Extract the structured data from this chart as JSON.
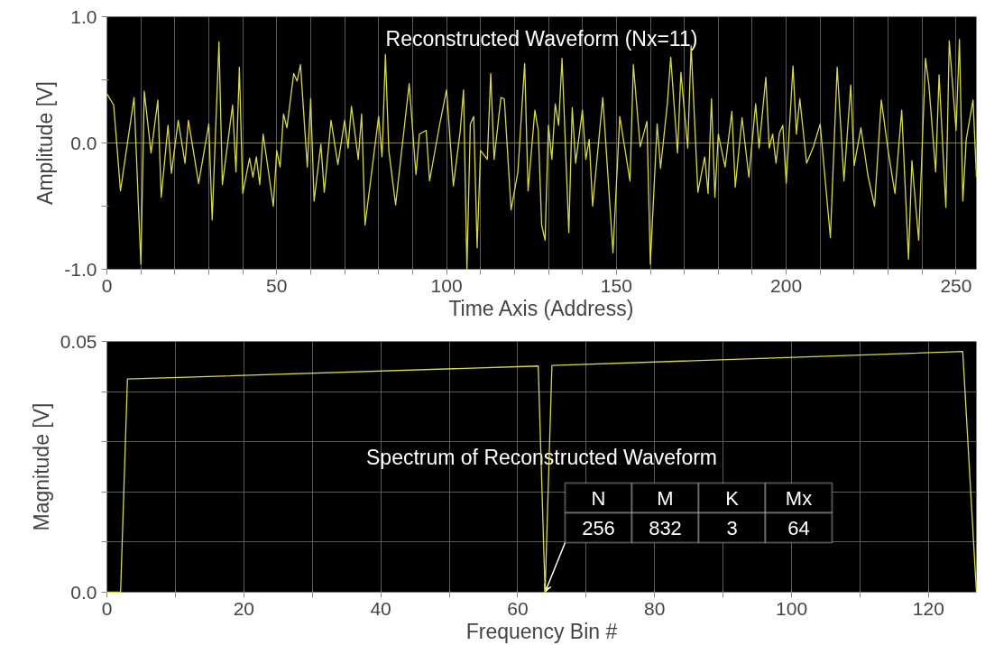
{
  "chart_data": [
    {
      "type": "line",
      "title": "Reconstructed Waveform (Nx=11)",
      "xlabel": "Time Axis (Address)",
      "ylabel": "Amplitude [V]",
      "x": [
        0,
        2,
        4,
        8,
        10,
        11,
        13,
        15,
        16,
        18,
        19,
        21,
        23,
        24,
        27,
        30,
        31,
        33,
        34,
        37,
        38,
        39,
        40,
        42,
        43,
        44,
        45,
        46,
        49,
        50,
        51,
        52,
        53,
        55,
        56,
        57,
        59,
        60,
        61,
        63,
        64,
        66,
        68,
        70,
        71,
        72,
        74,
        75,
        76,
        80,
        81,
        82,
        83,
        85,
        89,
        91,
        92,
        94,
        95,
        98,
        100,
        102,
        104,
        105,
        106,
        107,
        108,
        109,
        110,
        112,
        113,
        114,
        116,
        117,
        119,
        121,
        123,
        124,
        126,
        127,
        128,
        129,
        130,
        131,
        132,
        133,
        134,
        136,
        137,
        138,
        140,
        141,
        142,
        143,
        146,
        149,
        151,
        154,
        155,
        157,
        159,
        160,
        162,
        163,
        165,
        166,
        168,
        169,
        171,
        172,
        174,
        176,
        177,
        178,
        179,
        180,
        182,
        184,
        185,
        187,
        189,
        191,
        192,
        194,
        195,
        196,
        197,
        198,
        199,
        200,
        202,
        203,
        204,
        206,
        208,
        210,
        213,
        215,
        217,
        219,
        220,
        222,
        224,
        226,
        228,
        230,
        232,
        234,
        236,
        237,
        239,
        241,
        242,
        244,
        245,
        247,
        248,
        250,
        251,
        252,
        253,
        255,
        256
      ],
      "series": [
        {
          "color": "#d8d848",
          "values": [
            0.39,
            0.3,
            -0.38,
            0.36,
            -0.96,
            0.41,
            -0.08,
            0.34,
            -0.43,
            0.14,
            -0.24,
            0.18,
            -0.16,
            0.18,
            -0.32,
            0.15,
            -0.61,
            0.8,
            -0.33,
            0.3,
            -0.23,
            0.6,
            -0.4,
            -0.12,
            -0.27,
            -0.11,
            -0.33,
            0.07,
            -0.5,
            -0.06,
            -0.19,
            0.23,
            0.12,
            0.55,
            0.49,
            0.62,
            -0.19,
            0.35,
            -0.46,
            -0.01,
            -0.39,
            0.18,
            -0.17,
            0.18,
            -0.04,
            0.29,
            -0.13,
            0.23,
            -0.65,
            0.21,
            -0.11,
            0.7,
            -0.06,
            -0.49,
            0.47,
            -0.25,
            0.07,
            0.1,
            -0.3,
            0.15,
            0.42,
            -0.34,
            0.09,
            0.42,
            -1.0,
            0.15,
            0.21,
            -0.83,
            -0.06,
            -0.13,
            0.55,
            -0.13,
            0.36,
            0.35,
            -0.53,
            -0.23,
            0.63,
            -0.38,
            0.26,
            0.1,
            -0.65,
            -0.77,
            0.14,
            -0.13,
            0.31,
            0.14,
            0.67,
            -0.71,
            0.28,
            -0.16,
            0.26,
            -0.13,
            0.03,
            -0.5,
            0.36,
            -0.87,
            0.21,
            -0.3,
            0.62,
            -0.03,
            0.17,
            -0.96,
            0.15,
            -0.2,
            0.31,
            0.68,
            -0.08,
            0.56,
            -0.04,
            0.77,
            -0.39,
            -0.11,
            -0.4,
            0.35,
            -0.43,
            0.07,
            -0.19,
            0.25,
            -0.35,
            0.2,
            -0.27,
            0.31,
            -0.04,
            0.52,
            -0.04,
            0.07,
            -0.16,
            0.08,
            0.14,
            -0.32,
            0.61,
            0.07,
            0.35,
            -0.16,
            -0.03,
            0.15,
            -0.75,
            0.6,
            -0.3,
            0.46,
            -0.18,
            0.12,
            -0.25,
            -0.5,
            0.34,
            -0.06,
            -0.4,
            0.26,
            -0.92,
            -0.14,
            -0.77,
            0.67,
            0.46,
            -0.23,
            0.54,
            -0.51,
            0.81,
            0.1,
            0.82,
            -0.46,
            0.03,
            0.34,
            -0.27
          ]
        }
      ],
      "xlim": [
        0,
        256
      ],
      "ylim": [
        -1.0,
        1.0
      ],
      "xticks": [
        0,
        {
          "value": 10,
          "label": null
        },
        {
          "value": 20,
          "label": null
        },
        {
          "value": 30,
          "label": null
        },
        {
          "value": 40,
          "label": null
        },
        50,
        {
          "value": 60,
          "label": null
        },
        {
          "value": 70,
          "label": null
        },
        {
          "value": 80,
          "label": null
        },
        {
          "value": 90,
          "label": null
        },
        100,
        {
          "value": 110,
          "label": null
        },
        {
          "value": 120,
          "label": null
        },
        {
          "value": 130,
          "label": null
        },
        {
          "value": 140,
          "label": null
        },
        150,
        {
          "value": 160,
          "label": null
        },
        {
          "value": 170,
          "label": null
        },
        {
          "value": 180,
          "label": null
        },
        {
          "value": 190,
          "label": null
        },
        200,
        {
          "value": 210,
          "label": null
        },
        {
          "value": 220,
          "label": null
        },
        {
          "value": 230,
          "label": null
        },
        {
          "value": 240,
          "label": null
        },
        250
      ],
      "yticks": [
        {
          "value": -1.0,
          "label": "-1.0"
        },
        {
          "value": -0.5,
          "label": null
        },
        {
          "value": 0,
          "label": "0.0"
        },
        {
          "value": 0.5,
          "label": null
        },
        {
          "value": 1.0,
          "label": "1.0"
        }
      ],
      "grid": "x",
      "ref_lines": [
        {
          "axis": "y",
          "value": 0,
          "color": "#808060"
        }
      ],
      "line_style": "solid"
    },
    {
      "type": "line",
      "title": "Spectrum of Reconstructed Waveform",
      "xlabel": "Frequency Bin #",
      "ylabel": "Magnitude [V]",
      "x": [
        0,
        2,
        3,
        63,
        64,
        65,
        125,
        127
      ],
      "series": [
        {
          "color": "#d8d848",
          "values": [
            0,
            0,
            0.0425,
            0.0451,
            0,
            0.0452,
            0.048,
            0
          ]
        }
      ],
      "xlim": [
        0,
        127
      ],
      "ylim": [
        0,
        0.05
      ],
      "xticks": [
        0,
        {
          "value": 10,
          "label": null
        },
        20,
        {
          "value": 30,
          "label": null
        },
        40,
        {
          "value": 50,
          "label": null
        },
        60,
        {
          "value": 70,
          "label": null
        },
        80,
        {
          "value": 90,
          "label": null
        },
        100,
        {
          "value": 110,
          "label": null
        },
        120
      ],
      "yticks": [
        {
          "value": 0,
          "label": "0.0"
        },
        {
          "value": 0.01,
          "label": null
        },
        {
          "value": 0.02,
          "label": null
        },
        {
          "value": 0.03,
          "label": null
        },
        {
          "value": 0.04,
          "label": null
        },
        {
          "value": 0.05,
          "label": "0.05"
        }
      ],
      "grid": true,
      "line_style": "solid",
      "annotations": [
        "N",
        "M",
        "K",
        "Mx",
        {
          "text": "256",
          "x": 64,
          "y": 0
        },
        "832",
        "3",
        "64"
      ]
    }
  ]
}
